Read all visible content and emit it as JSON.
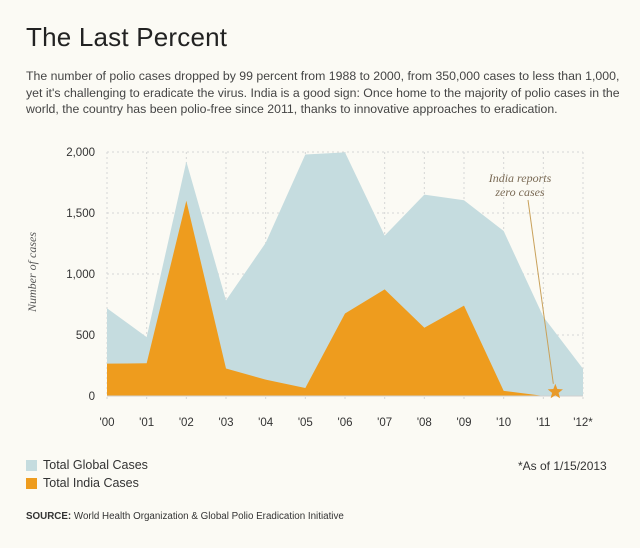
{
  "title": "The Last Percent",
  "subtitle": "The number of polio cases dropped by 99 percent from 1988 to 2000, from 350,000 cases to less than 1,000, yet it's challenging to eradicate the virus. India is a good sign: Once home to the majority of polio cases in the world, the country has been polio-free since 2011, thanks to innovative approaches to eradication.",
  "colors": {
    "global": "#c5dcdf",
    "india": "#ee9c1e",
    "star": "#e89a2a",
    "annotation_line": "#c9a15a",
    "grid": "#d6d6d6"
  },
  "chart_data": {
    "type": "area",
    "categories": [
      "'00",
      "'01",
      "'02",
      "'03",
      "'04",
      "'05",
      "'06",
      "'07",
      "'08",
      "'09",
      "'10",
      "'11",
      "'12*"
    ],
    "series": [
      {
        "name": "Total Global Cases",
        "values": [
          719,
          483,
          1922,
          784,
          1255,
          1979,
          1997,
          1315,
          1651,
          1604,
          1352,
          650,
          223
        ]
      },
      {
        "name": "Total India Cases",
        "values": [
          265,
          268,
          1600,
          225,
          134,
          66,
          676,
          874,
          559,
          741,
          42,
          1,
          0
        ]
      }
    ],
    "ylabel": "Number of cases",
    "ylim": [
      0,
      2000
    ],
    "yticks": [
      0,
      500,
      1000,
      1500,
      2000
    ],
    "ytick_labels": [
      "0",
      "500",
      "1,000",
      "1,500",
      "2,000"
    ],
    "grid": true,
    "annotation": {
      "lines": [
        "India reports",
        "zero cases"
      ],
      "x": "'11",
      "y": 100
    }
  },
  "legend": [
    {
      "label": "Total Global Cases"
    },
    {
      "label": "Total India Cases"
    }
  ],
  "footnote": "*As of 1/15/2013",
  "source": {
    "label": "SOURCE:",
    "text": " World Health Organization & Global Polio Eradication Initiative"
  }
}
